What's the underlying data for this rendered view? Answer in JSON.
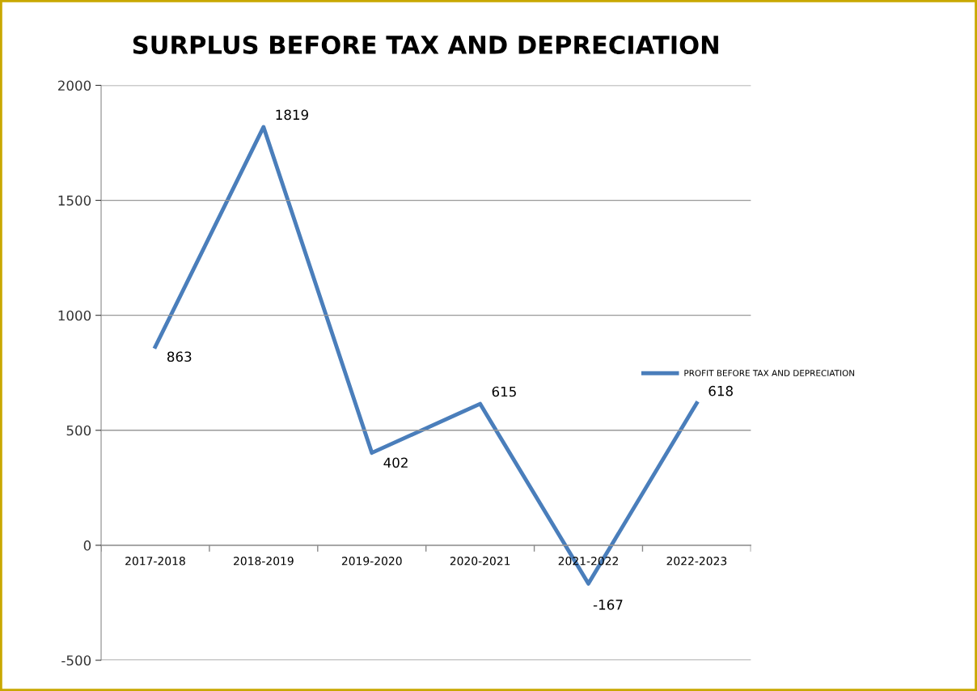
{
  "chart_data": {
    "type": "line",
    "title": "SURPLUS BEFORE TAX AND DEPRECIATION",
    "categories": [
      "2017-2018",
      "2018-2019",
      "2019-2020",
      "2020-2021",
      "2021-2022",
      "2022-2023"
    ],
    "series": [
      {
        "name": "PROFIT BEFORE TAX AND DEPRECIATION",
        "color": "#4a7ebb",
        "values": [
          863,
          1819,
          402,
          615,
          -167,
          618
        ]
      }
    ],
    "ylim": [
      -500,
      2000
    ],
    "yticks": [
      -500,
      0,
      500,
      1000,
      1500,
      2000
    ],
    "grid": "y",
    "legend": "right",
    "data_labels": true,
    "marker": "none",
    "line_style": "solid"
  }
}
